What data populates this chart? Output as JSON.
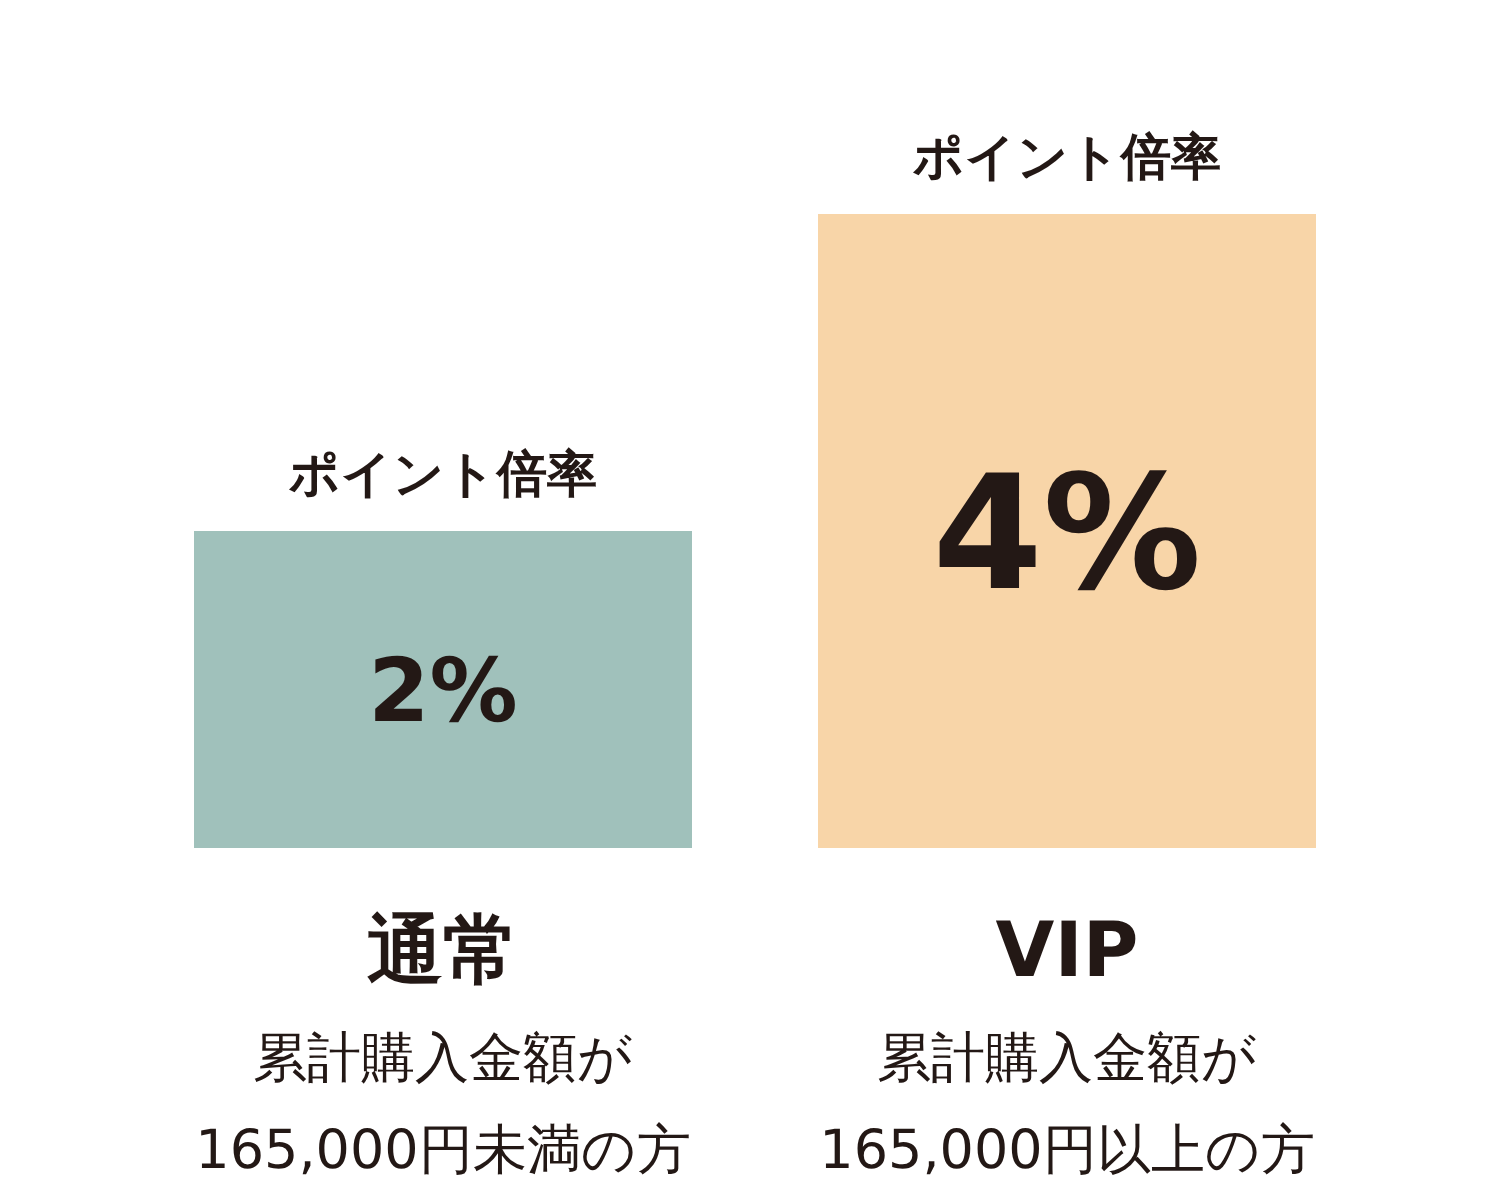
{
  "chart_data": {
    "type": "bar",
    "categories": [
      "通常",
      "VIP"
    ],
    "values": [
      2,
      4
    ],
    "colors": [
      "#a0c1bb",
      "#f8d5a8"
    ],
    "value_labels": [
      "2%",
      "4%"
    ],
    "annotations": [
      {
        "text": "ポイント倍率",
        "x": "通常",
        "y": 2
      },
      {
        "text": "ポイント倍率",
        "x": "VIP",
        "y": 4
      },
      "累計購入金額が",
      "165,000円未満の方",
      "累計購入金額が",
      "165,000円以上の方"
    ]
  }
}
